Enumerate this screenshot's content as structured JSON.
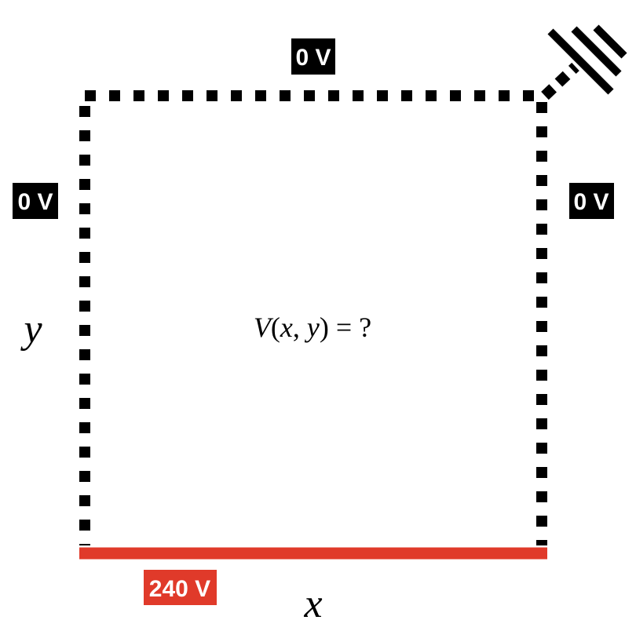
{
  "boundaries": {
    "top": {
      "label": "0 V"
    },
    "left": {
      "label": "0 V"
    },
    "right": {
      "label": "0 V"
    },
    "bottom": {
      "label": "240 V"
    }
  },
  "axes": {
    "x_label": "x",
    "y_label": "y"
  },
  "question": {
    "v": "V",
    "open": "(",
    "x": "x",
    "comma": ", ",
    "y": "y",
    "close": ")",
    "rest": " = ?"
  },
  "colors": {
    "boundary_grounded": "#000000",
    "boundary_driven": "#e03a2a",
    "label_text": "#ffffff",
    "ground_symbol": "#000000"
  },
  "icons": {
    "ground": "ground-symbol-icon"
  }
}
